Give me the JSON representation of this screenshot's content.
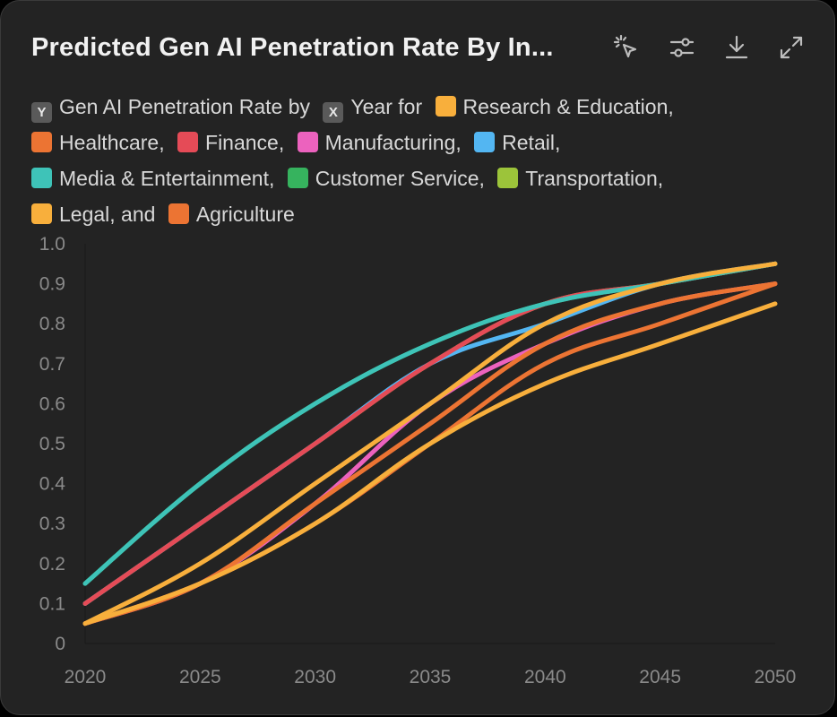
{
  "title": "Predicted Gen AI Penetration Rate By In...",
  "toolbar": {
    "icons": [
      "cursor-sparkle-icon",
      "sliders-icon",
      "download-icon",
      "expand-icon"
    ]
  },
  "legend": {
    "y_chip": "Y",
    "y_label": "Gen AI Penetration Rate by",
    "x_chip": "X",
    "x_label": "Year for",
    "items": [
      {
        "label": "Research & Education,",
        "color": "#F8AF3C"
      },
      {
        "label": "Healthcare,",
        "color": "#EC7433"
      },
      {
        "label": "Finance,",
        "color": "#E54B57"
      },
      {
        "label": "Manufacturing,",
        "color": "#EC62BE"
      },
      {
        "label": "Retail,",
        "color": "#53B6F2"
      },
      {
        "label": "Media & Entertainment,",
        "color": "#3EC3B8"
      },
      {
        "label": "Customer Service,",
        "color": "#36B35E"
      },
      {
        "label": "Transportation,",
        "color": "#9CC43A"
      },
      {
        "label": "Legal, and",
        "color": "#F8AF3C"
      },
      {
        "label": "Agriculture",
        "color": "#EC7433"
      }
    ]
  },
  "chart_data": {
    "type": "line",
    "title": "Predicted Gen AI Penetration Rate By In...",
    "xlabel": "Year",
    "ylabel": "Gen AI Penetration Rate",
    "x": [
      2020,
      2025,
      2030,
      2035,
      2040,
      2045,
      2050
    ],
    "x_ticks": [
      "2020",
      "2025",
      "2030",
      "2035",
      "2040",
      "2045",
      "2050"
    ],
    "y_ticks": [
      "0",
      "0.1",
      "0.2",
      "0.3",
      "0.4",
      "0.5",
      "0.6",
      "0.7",
      "0.8",
      "0.9",
      "1.0"
    ],
    "ylim": [
      0,
      1.0
    ],
    "series": [
      {
        "name": "Customer Service",
        "color": "#36B35E",
        "values": [
          0.15,
          0.4,
          0.6,
          0.75,
          0.85,
          0.9,
          0.95
        ]
      },
      {
        "name": "Transportation",
        "color": "#9CC43A",
        "values": [
          0.1,
          0.3,
          0.5,
          0.7,
          0.85,
          0.9,
          0.95
        ]
      },
      {
        "name": "Manufacturing",
        "color": "#EC62BE",
        "values": [
          0.05,
          0.15,
          0.35,
          0.6,
          0.75,
          0.85,
          0.9
        ]
      },
      {
        "name": "Retail",
        "color": "#53B6F2",
        "values": [
          0.1,
          0.3,
          0.5,
          0.7,
          0.8,
          0.9,
          0.95
        ]
      },
      {
        "name": "Healthcare",
        "color": "#EC7433",
        "values": [
          0.05,
          0.15,
          0.35,
          0.55,
          0.75,
          0.85,
          0.9
        ]
      },
      {
        "name": "Agriculture",
        "color": "#EC7433",
        "values": [
          0.05,
          0.15,
          0.3,
          0.5,
          0.7,
          0.8,
          0.9
        ]
      },
      {
        "name": "Legal",
        "color": "#F8AF3C",
        "values": [
          0.05,
          0.15,
          0.3,
          0.5,
          0.65,
          0.75,
          0.85
        ]
      },
      {
        "name": "Finance",
        "color": "#E54B57",
        "values": [
          0.1,
          0.3,
          0.5,
          0.7,
          0.85,
          0.9,
          0.95
        ]
      },
      {
        "name": "Media & Entertainment",
        "color": "#3EC3B8",
        "values": [
          0.15,
          0.4,
          0.6,
          0.75,
          0.85,
          0.9,
          0.95
        ]
      },
      {
        "name": "Research & Education",
        "color": "#F8AF3C",
        "values": [
          0.05,
          0.2,
          0.4,
          0.6,
          0.8,
          0.9,
          0.95
        ]
      }
    ]
  }
}
